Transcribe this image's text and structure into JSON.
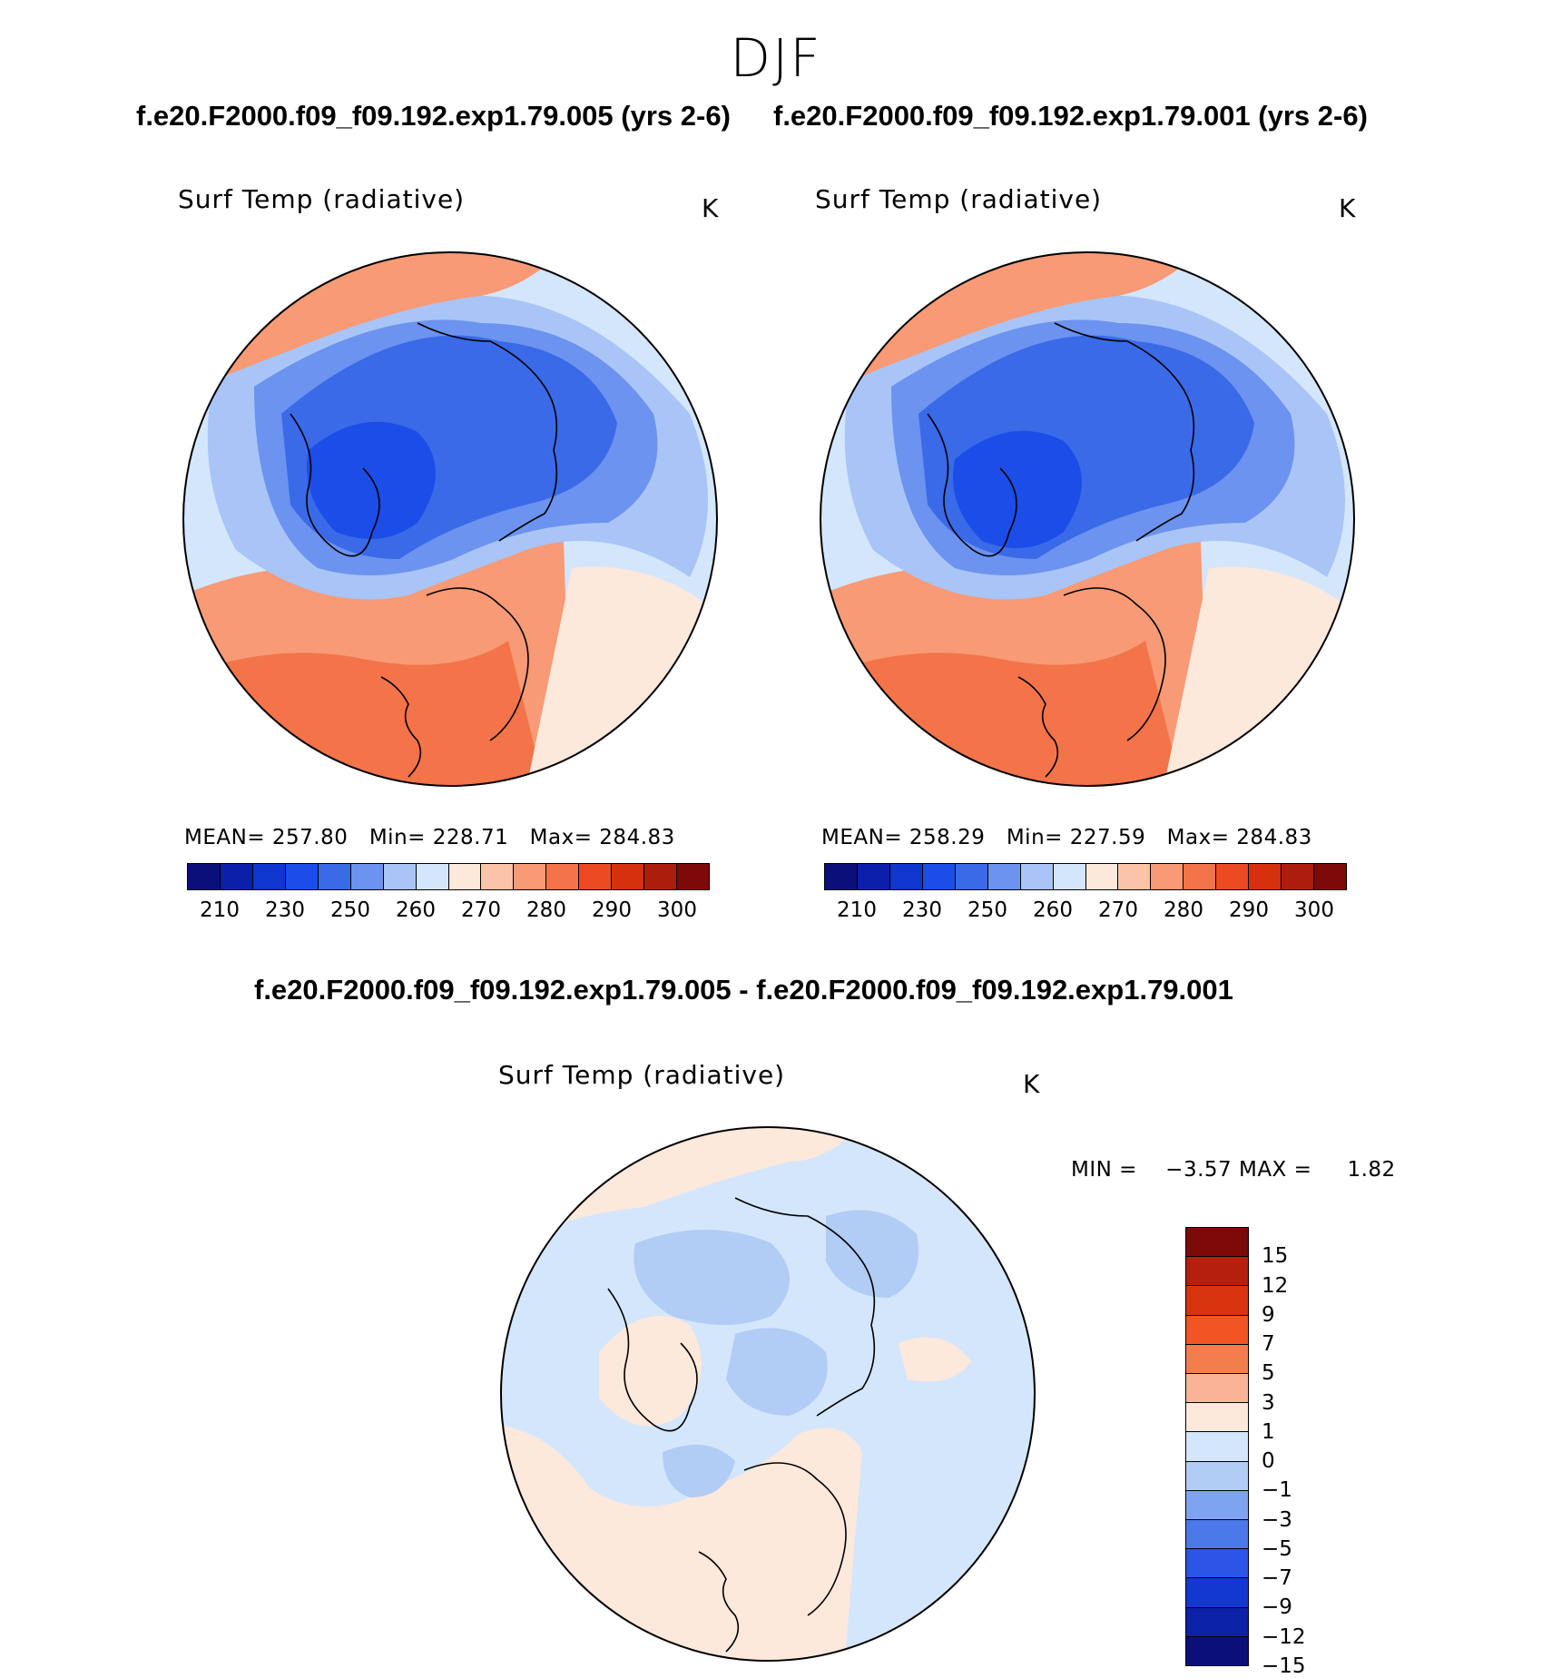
{
  "season": "DJF",
  "case_titles": {
    "left": "f.e20.F2000.f09_f09.192.exp1.79.005 (yrs 2-6)",
    "right": "f.e20.F2000.f09_f09.192.exp1.79.001 (yrs 2-6)",
    "diff": "f.e20.F2000.f09_f09.192.exp1.79.005 - f.e20.F2000.f09_f09.192.exp1.79.001"
  },
  "panels": {
    "left": {
      "variable": "Surf Temp (radiative)",
      "units": "K",
      "stats": {
        "mean_label": "MEAN=",
        "mean": "257.80",
        "min_label": "Min=",
        "min": "228.71",
        "max_label": "Max=",
        "max": "284.83"
      }
    },
    "right": {
      "variable": "Surf Temp (radiative)",
      "units": "K",
      "stats": {
        "mean_label": "MEAN=",
        "mean": "258.29",
        "min_label": "Min=",
        "min": "227.59",
        "max_label": "Max=",
        "max": "284.83"
      }
    },
    "diff": {
      "variable": "Surf Temp (radiative)",
      "units": "K",
      "stats": {
        "min_label": "MIN =",
        "min": "−3.57",
        "max_label": "MAX =",
        "max": "1.82"
      }
    }
  },
  "colorbars": {
    "abs": {
      "colors": [
        "#0a0f7a",
        "#0b1fa8",
        "#0f36cf",
        "#1b4ee8",
        "#3a6ae8",
        "#6b93ef",
        "#a9c4f6",
        "#d4e6fb",
        "#fde8dc",
        "#fbc4a8",
        "#f79a75",
        "#f37449",
        "#eb4a22",
        "#d6300e",
        "#ad1d0c",
        "#7c0a08"
      ],
      "ticks": [
        "210",
        "230",
        "250",
        "260",
        "270",
        "280",
        "290",
        "300"
      ]
    },
    "diff": {
      "colors": [
        "#7c0a08",
        "#b51f0e",
        "#d93410",
        "#f25424",
        "#f47d4e",
        "#f9b497",
        "#fde8dc",
        "#d4e6fb",
        "#b1ccf5",
        "#7ea3ef",
        "#4b78ea",
        "#2a55e6",
        "#1238d2",
        "#0b22a8",
        "#0a0f7a"
      ],
      "ticks": [
        "15",
        "12",
        "9",
        "7",
        "5",
        "3",
        "1",
        "0",
        "−1",
        "−3",
        "−5",
        "−7",
        "−9",
        "−12",
        "−15"
      ]
    }
  }
}
